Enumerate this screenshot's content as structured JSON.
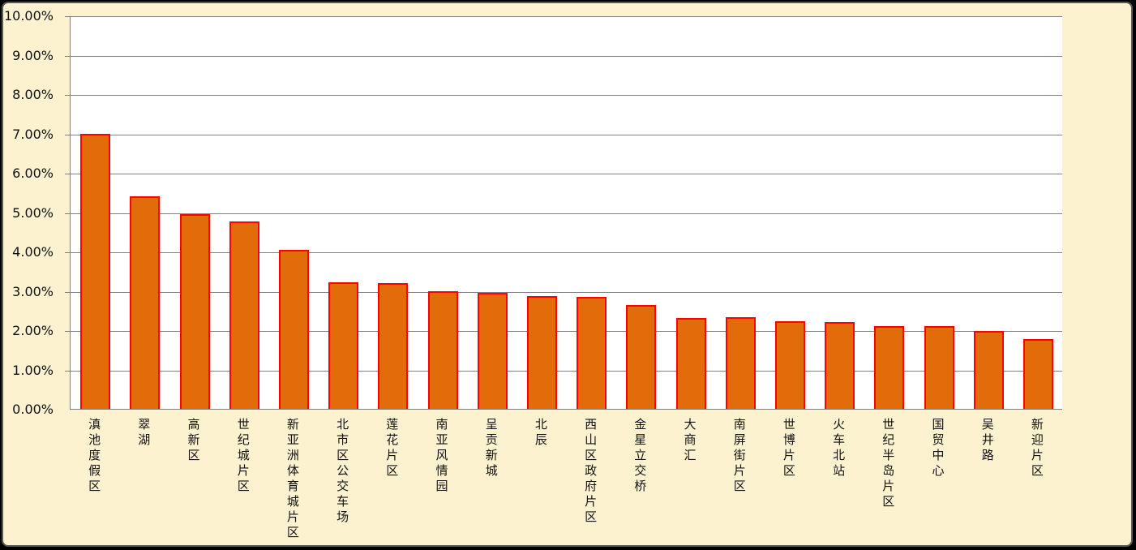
{
  "chart_data": {
    "type": "bar",
    "title": "",
    "categories": [
      "滇池度假区",
      "翠湖",
      "高新区",
      "世纪城片区",
      "新亚洲体育城片区",
      "北市区公交车场",
      "莲花片区",
      "南亚风情园",
      "呈贡新城",
      "北辰",
      "西山区政府片区",
      "金星立交桥",
      "大商汇",
      "南屏街片区",
      "世博片区",
      "火车北站",
      "世纪半岛片区",
      "国贸中心",
      "吴井路",
      "新迎片区"
    ],
    "values": [
      7.0,
      5.4,
      4.94,
      4.76,
      4.04,
      3.22,
      3.19,
      2.99,
      2.94,
      2.87,
      2.84,
      2.63,
      2.31,
      2.32,
      2.23,
      2.2,
      2.1,
      2.11,
      1.99,
      1.78
    ],
    "xlabel": "",
    "ylabel": "",
    "ylim": [
      0,
      10
    ],
    "y_tick_step": 1,
    "y_tick_labels": [
      "0.00%",
      "1.00%",
      "2.00%",
      "3.00%",
      "4.00%",
      "5.00%",
      "6.00%",
      "7.00%",
      "8.00%",
      "9.00%",
      "10.00%"
    ],
    "grid": true,
    "legend": "none",
    "colors": {
      "bar_fill": "#E36C0A",
      "bar_border": "#FF0000",
      "chart_background": "#FDF2D0",
      "plot_background": "#FFFFFF",
      "gridline": "#808080",
      "frame_border": "#595959",
      "text": "#111111",
      "outer_background": "#000000"
    }
  }
}
